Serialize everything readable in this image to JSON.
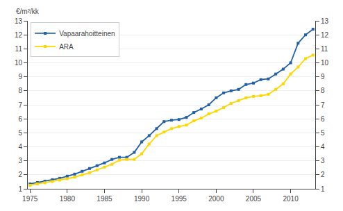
{
  "chart_data": {
    "type": "line",
    "ylabel": "€/m²/kk",
    "x": [
      1975,
      1976,
      1977,
      1978,
      1979,
      1980,
      1981,
      1982,
      1983,
      1984,
      1985,
      1986,
      1987,
      1988,
      1989,
      1990,
      1991,
      1992,
      1993,
      1994,
      1995,
      1996,
      1997,
      1998,
      1999,
      2000,
      2001,
      2002,
      2003,
      2004,
      2005,
      2006,
      2007,
      2008,
      2009,
      2010,
      2011,
      2012,
      2013
    ],
    "series": [
      {
        "name": "Vapaarahoitteinen",
        "color": "#2060A8",
        "marker": "square",
        "line_style": "solid",
        "values": [
          1.35,
          1.45,
          1.55,
          1.65,
          1.75,
          1.9,
          2.05,
          2.25,
          2.45,
          2.65,
          2.85,
          3.1,
          3.25,
          3.25,
          3.6,
          4.35,
          4.8,
          5.3,
          5.8,
          5.9,
          5.95,
          6.1,
          6.45,
          6.7,
          7.0,
          7.5,
          7.85,
          8.0,
          8.1,
          8.45,
          8.55,
          8.8,
          8.85,
          9.2,
          9.55,
          10.0,
          11.4,
          12.0,
          12.4
        ]
      },
      {
        "name": "ARA",
        "color": "#FFD700",
        "marker": "square",
        "line_style": "solid",
        "values": [
          1.25,
          1.35,
          1.43,
          1.52,
          1.62,
          1.72,
          1.83,
          2.0,
          2.15,
          2.35,
          2.55,
          2.75,
          3.05,
          3.1,
          3.1,
          3.5,
          4.2,
          4.8,
          5.05,
          5.3,
          5.45,
          5.55,
          5.85,
          6.05,
          6.35,
          6.55,
          6.8,
          7.1,
          7.3,
          7.5,
          7.6,
          7.65,
          7.75,
          8.1,
          8.5,
          9.2,
          9.7,
          10.3,
          10.55
        ]
      }
    ],
    "xlim": [
      1974.7,
      2013.3
    ],
    "xticks": [
      1975,
      1980,
      1985,
      1990,
      1995,
      2000,
      2005,
      2010
    ],
    "ylim": [
      1,
      13
    ],
    "yticks": [
      1,
      2,
      3,
      4,
      5,
      6,
      7,
      8,
      9,
      10,
      11,
      12,
      13
    ],
    "y2lim": [
      1,
      13
    ],
    "y2ticks": [
      1,
      2,
      3,
      4,
      5,
      6,
      7,
      8,
      9,
      10,
      11,
      12,
      13
    ],
    "grid": true,
    "legend": "upper left"
  }
}
